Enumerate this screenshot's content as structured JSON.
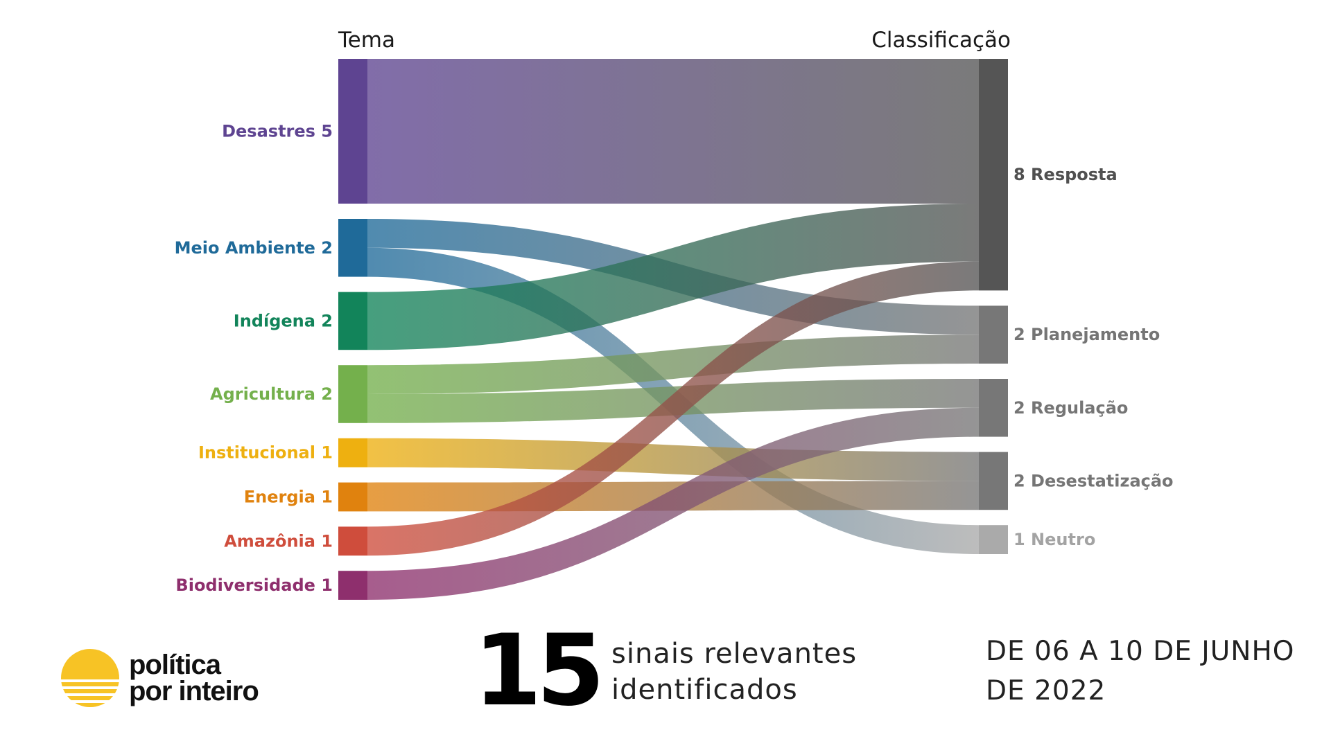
{
  "headers": {
    "left": "Tema",
    "right": "Classificação"
  },
  "chart_data": {
    "type": "sankey",
    "sources": [
      {
        "name": "Desastres",
        "value": 5,
        "label": "Desastres 5",
        "color": "#5e4491"
      },
      {
        "name": "Meio Ambiente",
        "value": 2,
        "label": "Meio Ambiente 2",
        "color": "#1f6a99"
      },
      {
        "name": "Indígena",
        "value": 2,
        "label": "Indígena 2",
        "color": "#12845a"
      },
      {
        "name": "Agricultura",
        "value": 2,
        "label": "Agricultura 2",
        "color": "#74b04c"
      },
      {
        "name": "Institucional",
        "value": 1,
        "label": "Institucional 1",
        "color": "#eeb010"
      },
      {
        "name": "Energia",
        "value": 1,
        "label": "Energia 1",
        "color": "#e0820e"
      },
      {
        "name": "Amazônia",
        "value": 1,
        "label": "Amazônia 1",
        "color": "#cf4d3c"
      },
      {
        "name": "Biodiversidade",
        "value": 1,
        "label": "Biodiversidade 1",
        "color": "#8e2f6d"
      }
    ],
    "targets": [
      {
        "name": "Resposta",
        "value": 8,
        "label": "8 Resposta",
        "color": "#555555",
        "text_color": "#505050"
      },
      {
        "name": "Planejamento",
        "value": 2,
        "label": "2 Planejamento",
        "color": "#777777",
        "text_color": "#757575"
      },
      {
        "name": "Regulação",
        "value": 2,
        "label": "2 Regulação",
        "color": "#777777",
        "text_color": "#757575"
      },
      {
        "name": "Desestatização",
        "value": 2,
        "label": "2 Desestatização",
        "color": "#777777",
        "text_color": "#757575"
      },
      {
        "name": "Neutro",
        "value": 1,
        "label": "1 Neutro",
        "color": "#aaaaaa",
        "text_color": "#a3a3a3"
      }
    ],
    "links": [
      {
        "source": "Desastres",
        "target": "Resposta",
        "value": 5
      },
      {
        "source": "Meio Ambiente",
        "target": "Planejamento",
        "value": 1
      },
      {
        "source": "Meio Ambiente",
        "target": "Neutro",
        "value": 1
      },
      {
        "source": "Indígena",
        "target": "Resposta",
        "value": 2
      },
      {
        "source": "Agricultura",
        "target": "Planejamento",
        "value": 1
      },
      {
        "source": "Agricultura",
        "target": "Regulação",
        "value": 1
      },
      {
        "source": "Institucional",
        "target": "Desestatização",
        "value": 1
      },
      {
        "source": "Energia",
        "target": "Desestatização",
        "value": 1
      },
      {
        "source": "Amazônia",
        "target": "Resposta",
        "value": 1
      },
      {
        "source": "Biodiversidade",
        "target": "Regulação",
        "value": 1
      }
    ]
  },
  "footer": {
    "logo_line1": "política",
    "logo_line2": "por inteiro",
    "logo_color": "#f7c325",
    "count": "15",
    "signals_line1": "sinais relevantes",
    "signals_line2": "identificados",
    "period_line1": "DE 06 A 10 DE JUNHO",
    "period_line2": "DE 2022"
  }
}
